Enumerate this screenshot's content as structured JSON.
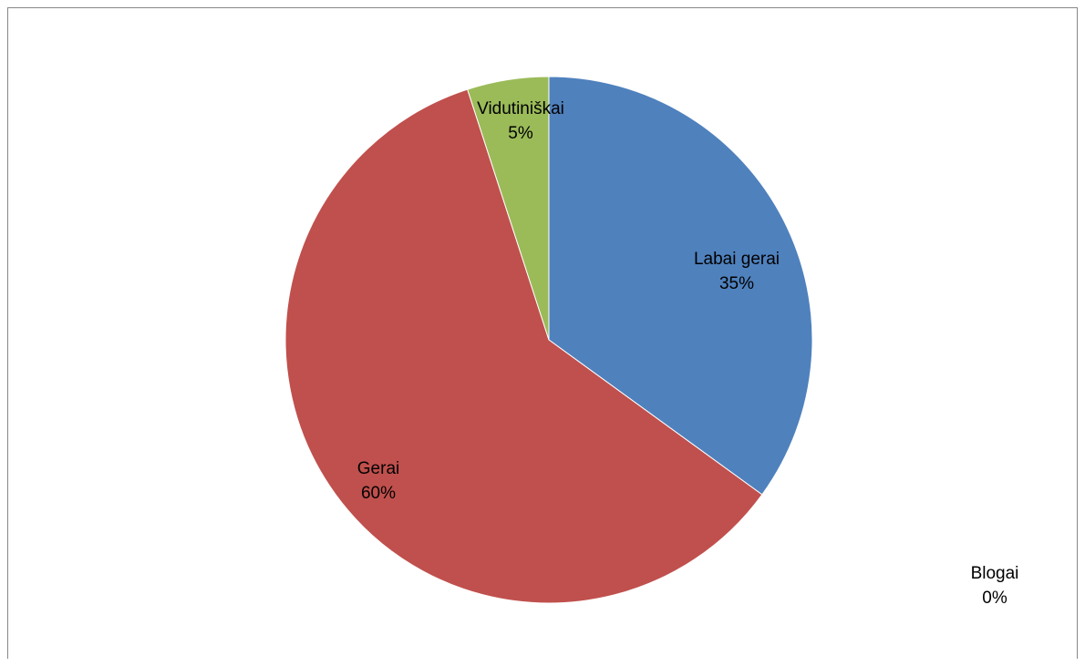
{
  "chart_data": {
    "type": "pie",
    "title": "",
    "start_angle_deg": 0,
    "direction": "clockwise",
    "slices": [
      {
        "name": "Labai gerai",
        "value": 35,
        "label": "35%",
        "color": "#4F81BD"
      },
      {
        "name": "Gerai",
        "value": 60,
        "label": "60%",
        "color": "#C0504D"
      },
      {
        "name": "Vidutiniškai",
        "value": 5,
        "label": "5%",
        "color": "#9BBB59"
      },
      {
        "name": "Blogai",
        "value": 0,
        "label": "0%",
        "color": "#8064A2"
      }
    ]
  }
}
